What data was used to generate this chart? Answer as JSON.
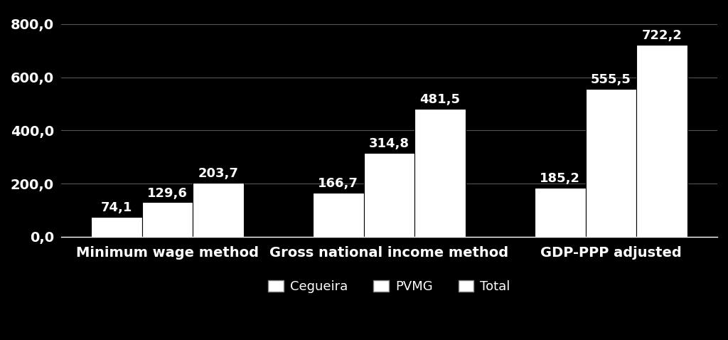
{
  "categories": [
    "Minimum wage method",
    "Gross national income method",
    "GDP-PPP adjusted"
  ],
  "series": {
    "Cegueira": [
      74.1,
      166.7,
      185.2
    ],
    "PVMG": [
      129.6,
      314.8,
      555.5
    ],
    "Total": [
      203.7,
      481.5,
      722.2
    ]
  },
  "bar_colors": {
    "Cegueira": "#ffffff",
    "PVMG": "#ffffff",
    "Total": "#ffffff"
  },
  "bar_edgecolor": "#000000",
  "background_color": "#000000",
  "text_color": "#ffffff",
  "ylim": [
    0,
    850
  ],
  "yticks": [
    0,
    200,
    400,
    600,
    800
  ],
  "ytick_labels": [
    "0,0",
    "200,0",
    "400,0",
    "600,0",
    "800,0"
  ],
  "bar_width": 0.23,
  "tick_fontsize": 14,
  "legend_fontsize": 13,
  "value_fontsize": 13,
  "grid_color": "#555555",
  "legend_labels": [
    "Cegueira",
    "PVMG",
    "Total"
  ]
}
